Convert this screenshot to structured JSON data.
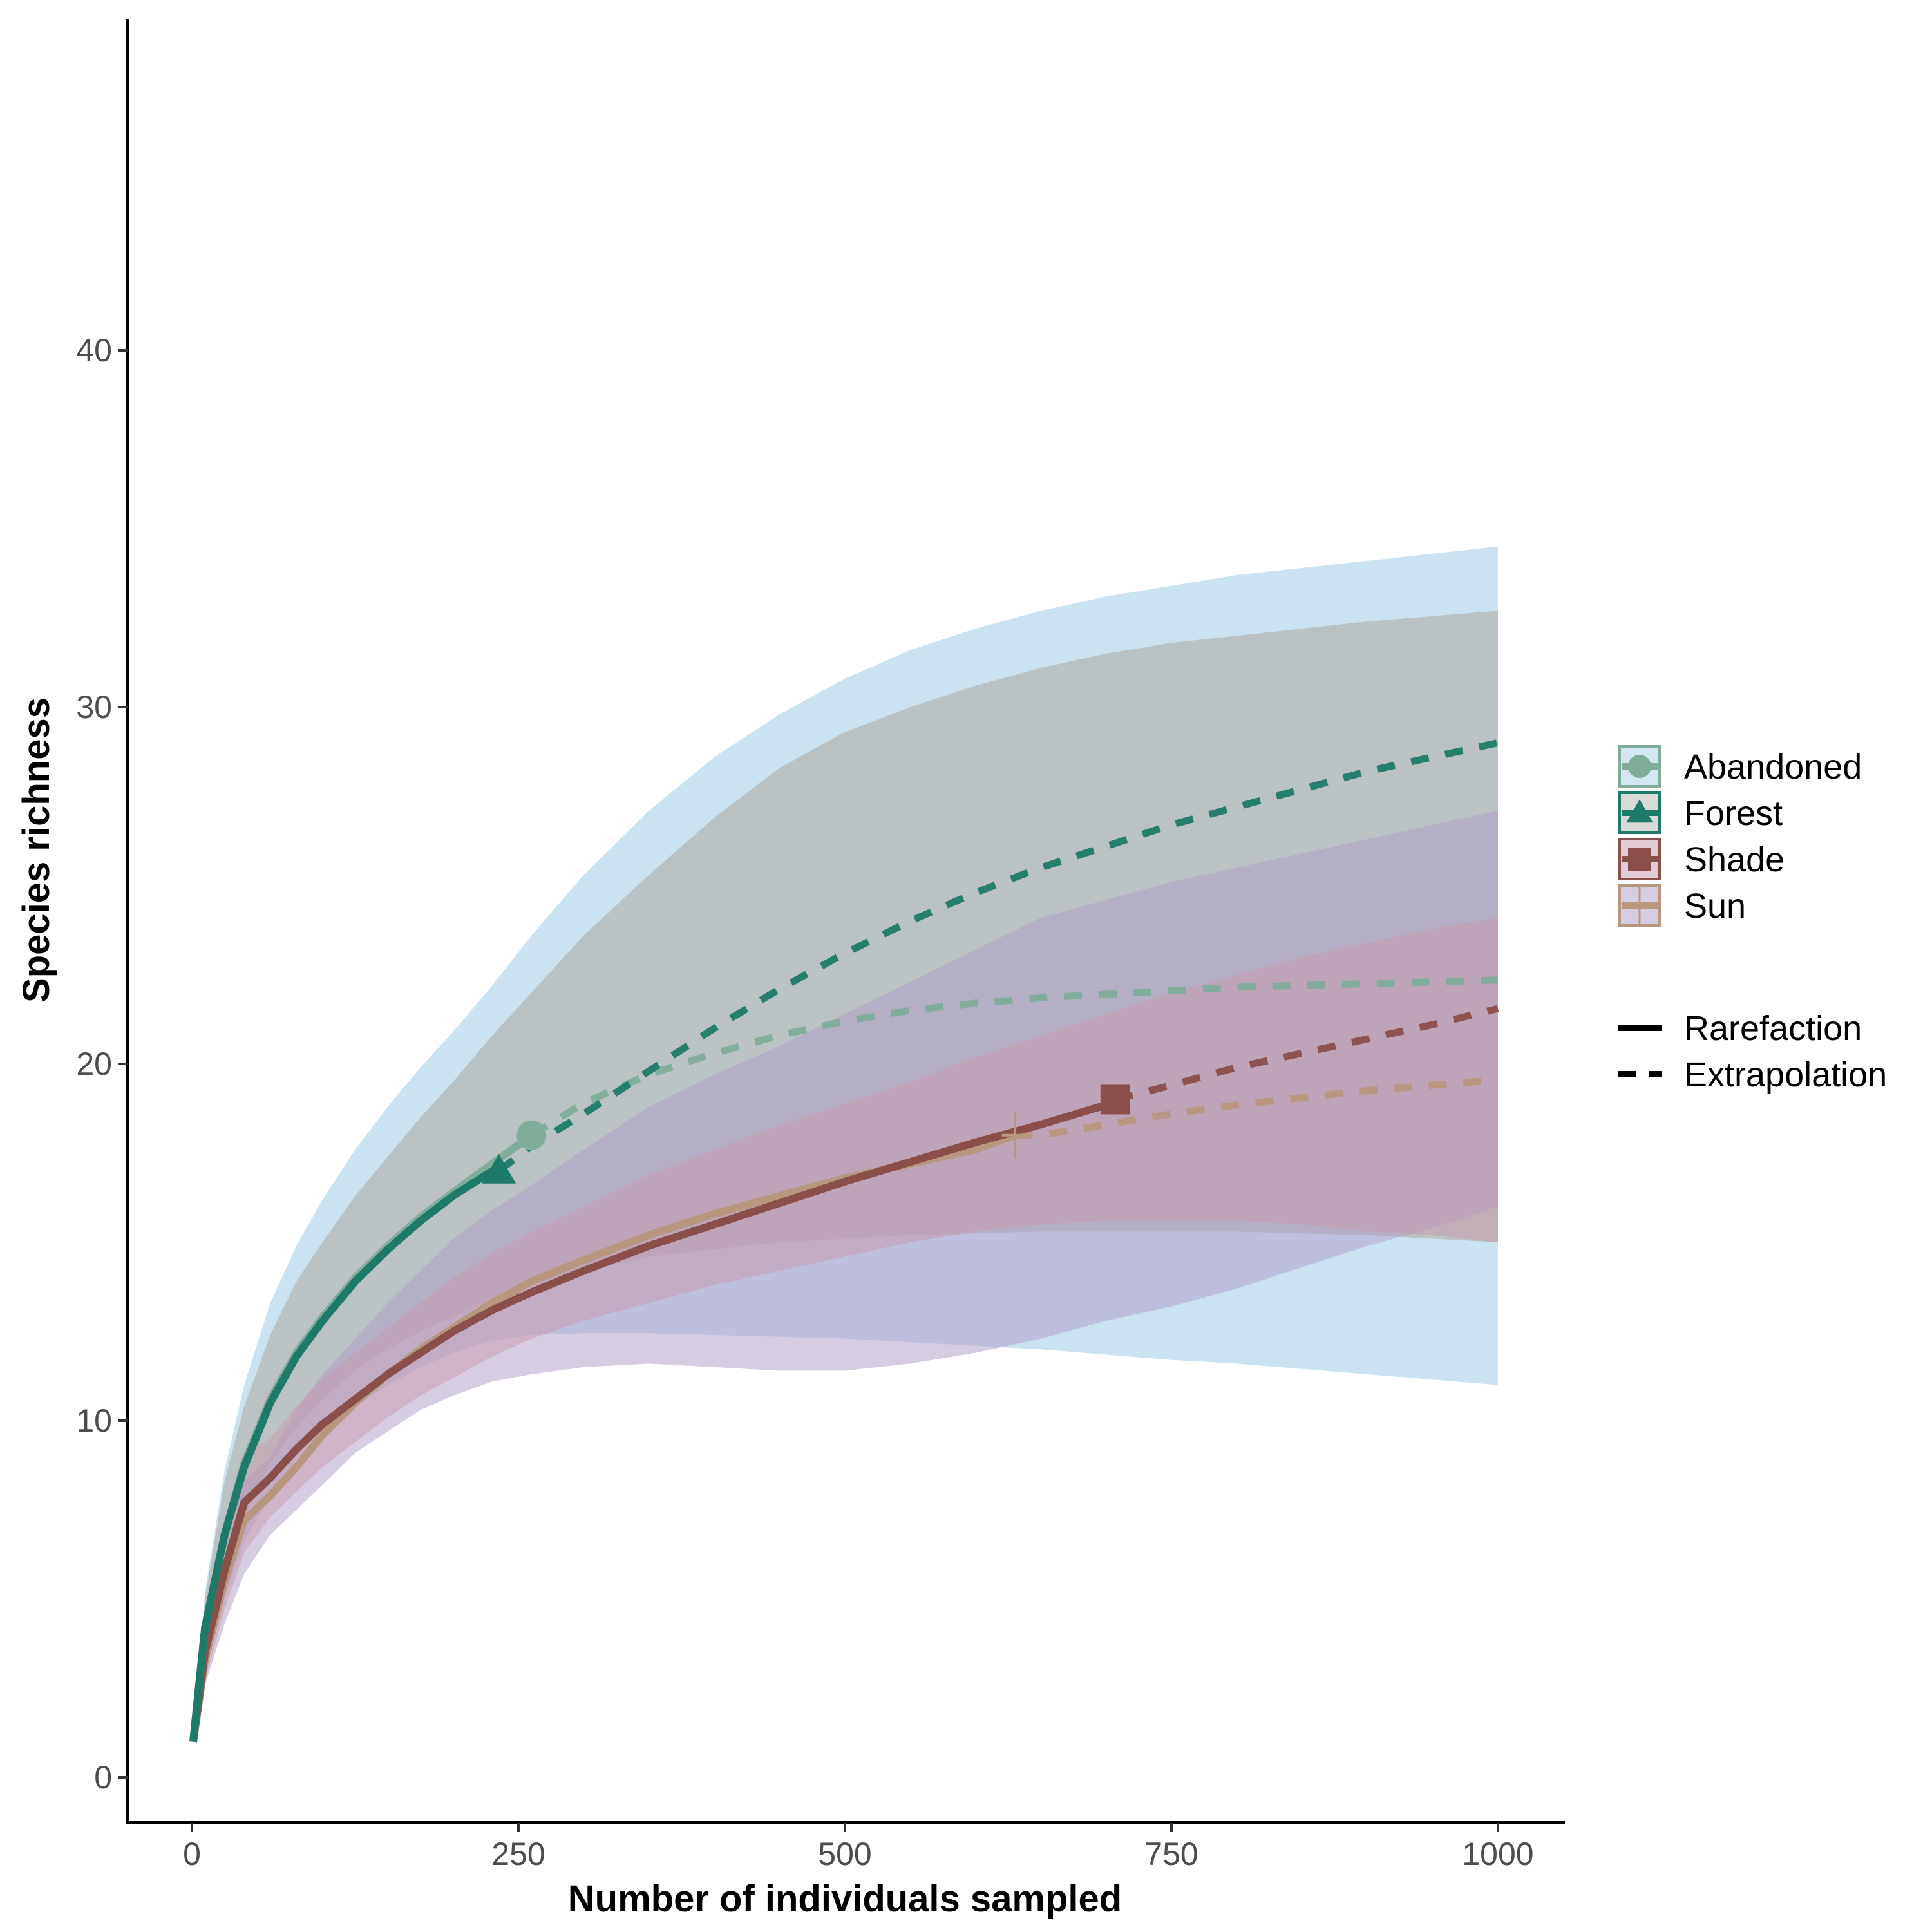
{
  "chart_data": {
    "type": "line",
    "xlabel": "Number of individuals sampled",
    "ylabel": "Species richness",
    "xlim": [
      -95,
      1050
    ],
    "ylim": [
      -1,
      48
    ],
    "xticks": [
      0,
      250,
      500,
      750,
      1000
    ],
    "yticks": [
      0,
      10,
      20,
      30,
      40
    ],
    "grid": false,
    "legend_position": "right",
    "x": [
      1,
      10,
      25,
      40,
      60,
      80,
      100,
      125,
      150,
      175,
      200,
      230,
      260,
      300,
      350,
      400,
      450,
      500,
      550,
      600,
      650,
      700,
      750,
      800,
      850,
      900,
      950,
      1000
    ],
    "series": [
      {
        "name": "Abandoned",
        "color": "#7fad9a",
        "marker": "circle",
        "observed": {
          "x": 260,
          "y": 18
        },
        "y": [
          1,
          4.2,
          6.8,
          8.8,
          10.6,
          11.9,
          12.9,
          14.0,
          14.9,
          15.7,
          16.4,
          17.2,
          18.0,
          18.9,
          19.7,
          20.3,
          20.8,
          21.2,
          21.5,
          21.7,
          21.85,
          21.95,
          22.05,
          22.15,
          22.2,
          22.25,
          22.3,
          22.35
        ],
        "lower": [
          1,
          3.2,
          5.0,
          6.6,
          7.9,
          8.9,
          9.6,
          10.4,
          11.0,
          11.5,
          11.9,
          12.25,
          12.4,
          12.45,
          12.45,
          12.4,
          12.35,
          12.3,
          12.2,
          12.1,
          12.0,
          11.85,
          11.7,
          11.6,
          11.45,
          11.3,
          11.15,
          11.0
        ],
        "upper": [
          1,
          5.2,
          8.6,
          11.0,
          13.3,
          14.9,
          16.2,
          17.6,
          18.8,
          19.9,
          20.9,
          22.2,
          23.6,
          25.3,
          27.1,
          28.6,
          29.8,
          30.8,
          31.6,
          32.2,
          32.7,
          33.1,
          33.4,
          33.7,
          33.9,
          34.1,
          34.3,
          34.5
        ]
      },
      {
        "name": "Forest",
        "color": "#1d7a68",
        "marker": "triangle",
        "observed": {
          "x": 235,
          "y": 17
        },
        "y": [
          1,
          4.2,
          6.8,
          8.7,
          10.5,
          11.8,
          12.8,
          13.9,
          14.8,
          15.6,
          16.3,
          17.0,
          17.7,
          18.6,
          19.8,
          21.0,
          22.1,
          23.1,
          24.0,
          24.8,
          25.5,
          26.1,
          26.7,
          27.2,
          27.7,
          28.2,
          28.6,
          29.0
        ],
        "lower": [
          1,
          3.5,
          5.5,
          7.3,
          8.8,
          9.8,
          10.6,
          11.4,
          12.0,
          12.5,
          12.9,
          13.4,
          13.8,
          14.2,
          14.6,
          14.8,
          15.0,
          15.1,
          15.2,
          15.25,
          15.3,
          15.3,
          15.3,
          15.3,
          15.25,
          15.2,
          15.1,
          15.0
        ],
        "upper": [
          1,
          5.0,
          8.3,
          10.4,
          12.4,
          13.9,
          15.0,
          16.3,
          17.4,
          18.5,
          19.5,
          20.8,
          22.0,
          23.6,
          25.3,
          26.9,
          28.3,
          29.3,
          30.0,
          30.6,
          31.1,
          31.5,
          31.8,
          32.0,
          32.2,
          32.4,
          32.55,
          32.7
        ]
      },
      {
        "name": "Shade",
        "color": "#8a4f4a",
        "marker": "square",
        "observed": {
          "x": 707,
          "y": 19
        },
        "y": [
          1,
          3.5,
          5.8,
          7.7,
          8.4,
          9.2,
          9.9,
          10.6,
          11.3,
          11.9,
          12.5,
          13.1,
          13.6,
          14.2,
          14.9,
          15.5,
          16.1,
          16.7,
          17.25,
          17.8,
          18.3,
          18.85,
          19.4,
          19.9,
          20.3,
          20.7,
          21.1,
          21.55
        ],
        "lower": [
          1,
          2.7,
          4.7,
          6.3,
          7.3,
          8.0,
          8.7,
          9.4,
          10.1,
          10.7,
          11.2,
          11.8,
          12.3,
          12.8,
          13.3,
          13.8,
          14.2,
          14.6,
          15.0,
          15.3,
          15.5,
          15.6,
          15.6,
          15.6,
          15.5,
          15.3,
          15.2,
          15.0
        ],
        "upper": [
          1,
          4.3,
          6.9,
          9.1,
          9.5,
          10.4,
          11.2,
          11.9,
          12.6,
          13.3,
          14.0,
          14.7,
          15.3,
          16.0,
          16.9,
          17.6,
          18.3,
          18.9,
          19.5,
          20.2,
          20.8,
          21.4,
          22.0,
          22.5,
          23.0,
          23.4,
          23.8,
          24.1
        ]
      },
      {
        "name": "Sun",
        "color": "#b89780",
        "marker": "cross",
        "observed": {
          "x": 630,
          "y": 18
        },
        "y": [
          1,
          3.3,
          5.5,
          7.2,
          7.9,
          8.7,
          9.6,
          10.5,
          11.3,
          12.0,
          12.6,
          13.3,
          13.9,
          14.5,
          15.2,
          15.8,
          16.3,
          16.8,
          17.2,
          17.6,
          18.0,
          18.3,
          18.6,
          18.85,
          19.05,
          19.25,
          19.4,
          19.55
        ],
        "lower": [
          1,
          2.6,
          4.3,
          5.7,
          6.8,
          7.5,
          8.2,
          9.1,
          9.7,
          10.3,
          10.7,
          11.1,
          11.3,
          11.5,
          11.6,
          11.5,
          11.4,
          11.4,
          11.6,
          11.9,
          12.3,
          12.8,
          13.2,
          13.7,
          14.3,
          14.9,
          15.4,
          16.0
        ],
        "upper": [
          1,
          4.0,
          6.4,
          8.3,
          9.0,
          10.3,
          11.3,
          12.3,
          13.3,
          14.2,
          15.1,
          15.9,
          16.6,
          17.6,
          18.8,
          19.7,
          20.5,
          21.4,
          22.3,
          23.2,
          24.1,
          24.6,
          25.1,
          25.5,
          25.9,
          26.3,
          26.7,
          27.1
        ]
      }
    ],
    "ribbons": [
      {
        "series": "Abandoned",
        "fill": "#a8d0e6",
        "opacity": 0.6
      },
      {
        "series": "Forest",
        "fill": "#b4b4b1",
        "opacity": 0.7
      },
      {
        "series": "Sun",
        "fill": "#b09cc8",
        "opacity": 0.5
      },
      {
        "series": "Shade",
        "fill": "#c79aaa",
        "opacity": 0.5
      }
    ],
    "linetype_legend": [
      {
        "label": "Rarefaction",
        "dash": "solid"
      },
      {
        "label": "Extrapolation",
        "dash": "dashed"
      }
    ]
  }
}
